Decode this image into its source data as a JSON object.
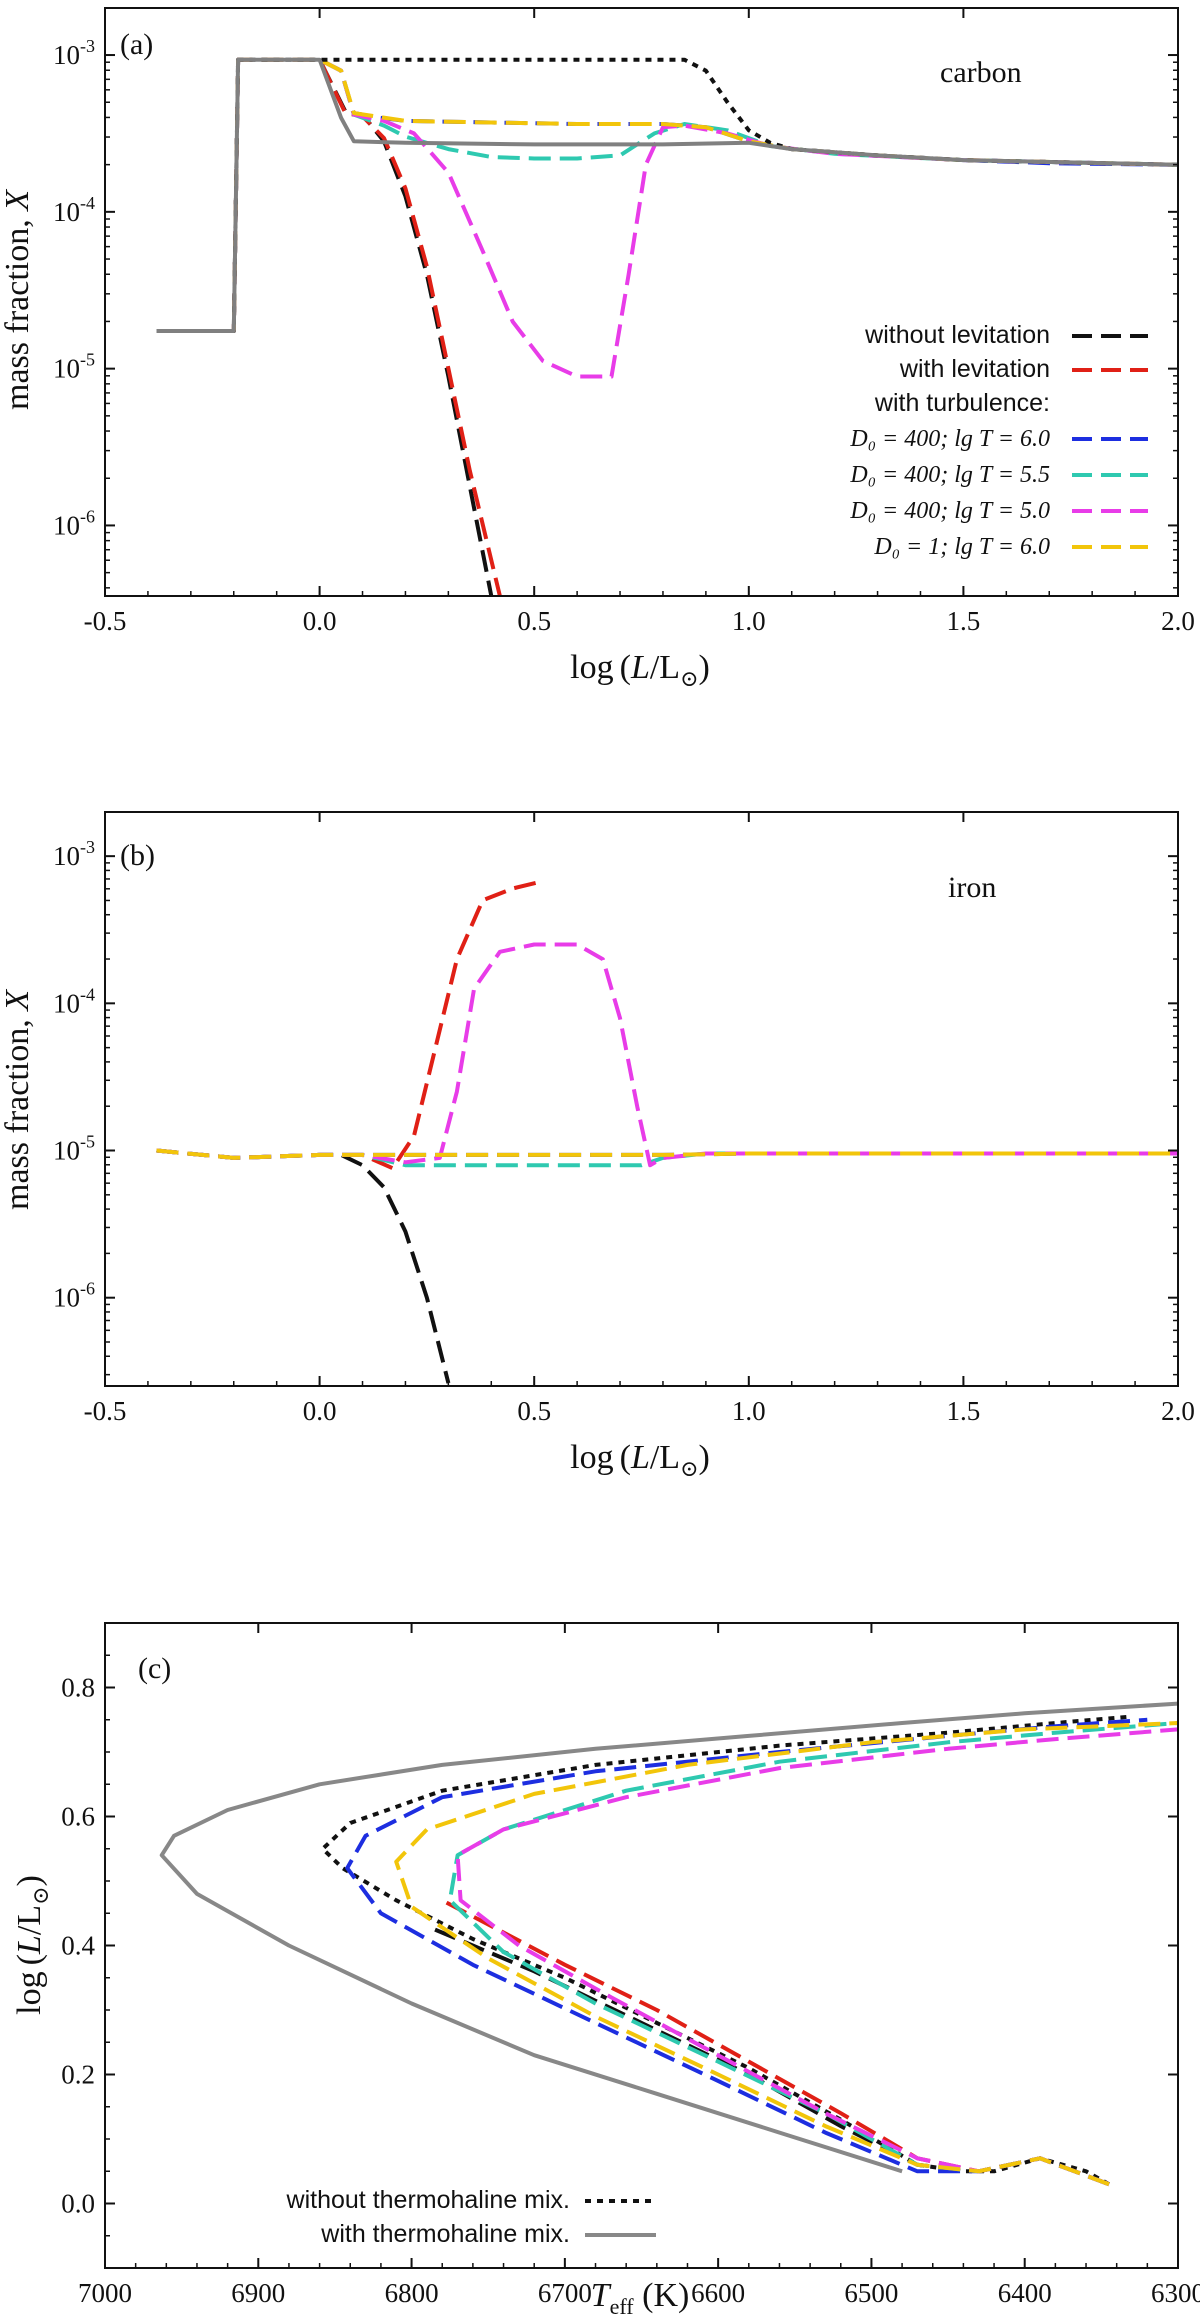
{
  "chart_data": [
    {
      "type": "line",
      "panel_label": "(a)",
      "element": "carbon",
      "xlabel": "log (L/L⊙)",
      "ylabel": "mass fraction, X",
      "xlim": [
        -0.5,
        2.0
      ],
      "ylim_log10": [
        -6.45,
        -2.7
      ],
      "x_ticks": [
        "-0.5",
        "0.0",
        "0.5",
        "1.0",
        "1.5",
        "2.0"
      ],
      "x_tick_values": [
        -0.5,
        0.0,
        0.5,
        1.0,
        1.5,
        2.0
      ],
      "y_ticks": [
        "10-3",
        "10-4",
        "10-5",
        "10-6"
      ],
      "y_tick_values": [
        -3,
        -4,
        -5,
        -6
      ],
      "legend_position": "right-middle",
      "legend_heading": "with turbulence:",
      "series": [
        {
          "name": "without levitation",
          "legend": "without levitation",
          "color": "#111111",
          "dash": "long",
          "x": [
            -0.38,
            -0.2,
            -0.19,
            0.0,
            0.06,
            0.1,
            0.15,
            0.2,
            0.25,
            0.3,
            0.35,
            0.4
          ],
          "y": [
            -4.76,
            -4.76,
            -3.03,
            -3.03,
            -3.36,
            -3.38,
            -3.55,
            -3.9,
            -4.4,
            -5.05,
            -5.75,
            -6.45
          ]
        },
        {
          "name": "with levitation",
          "legend": "with levitation",
          "color": "#e02016",
          "dash": "long",
          "x": [
            -0.38,
            -0.2,
            -0.19,
            0.0,
            0.06,
            0.1,
            0.15,
            0.2,
            0.25,
            0.3,
            0.35,
            0.42
          ],
          "y": [
            -4.76,
            -4.76,
            -3.03,
            -3.03,
            -3.37,
            -3.39,
            -3.53,
            -3.85,
            -4.35,
            -5.0,
            -5.65,
            -6.45
          ]
        },
        {
          "name": "D0=400; lg T=6.0",
          "legend_math": "D₀ = 400; lg T = 6.0",
          "color": "#1d2ee0",
          "dash": "long",
          "x": [
            -0.38,
            -0.2,
            -0.19,
            0.0,
            0.05,
            0.08,
            0.2,
            0.4,
            0.6,
            0.8,
            0.9,
            1.0,
            1.1,
            1.3,
            1.5,
            1.7,
            2.0
          ],
          "y": [
            -4.76,
            -4.76,
            -3.03,
            -3.03,
            -3.1,
            -3.38,
            -3.42,
            -3.43,
            -3.44,
            -3.44,
            -3.46,
            -3.55,
            -3.6,
            -3.64,
            -3.67,
            -3.69,
            -3.7
          ]
        },
        {
          "name": "D0=400; lg T=5.5",
          "legend_math": "D₀ = 400; lg T = 5.5",
          "color": "#2ec9b0",
          "dash": "long",
          "x": [
            -0.38,
            -0.2,
            -0.19,
            0.0,
            0.05,
            0.08,
            0.15,
            0.2,
            0.3,
            0.4,
            0.5,
            0.6,
            0.7,
            0.78,
            0.85,
            0.95,
            1.05,
            1.2,
            1.5,
            2.0
          ],
          "y": [
            -4.76,
            -4.76,
            -3.03,
            -3.03,
            -3.1,
            -3.38,
            -3.45,
            -3.52,
            -3.6,
            -3.65,
            -3.66,
            -3.66,
            -3.64,
            -3.5,
            -3.44,
            -3.48,
            -3.58,
            -3.63,
            -3.67,
            -3.7
          ]
        },
        {
          "name": "D0=400; lg T=5.0",
          "legend_math": "D₀ = 400; lg T = 5.0",
          "color": "#e83ce8",
          "dash": "long",
          "x": [
            -0.38,
            -0.2,
            -0.19,
            0.0,
            0.05,
            0.08,
            0.15,
            0.22,
            0.3,
            0.38,
            0.45,
            0.52,
            0.6,
            0.68,
            0.72,
            0.76,
            0.8,
            0.85,
            0.95,
            1.05,
            1.2,
            1.5,
            2.0
          ],
          "y": [
            -4.76,
            -4.76,
            -3.03,
            -3.03,
            -3.1,
            -3.38,
            -3.42,
            -3.5,
            -3.75,
            -4.25,
            -4.7,
            -4.95,
            -5.05,
            -5.05,
            -4.4,
            -3.7,
            -3.46,
            -3.45,
            -3.5,
            -3.58,
            -3.63,
            -3.67,
            -3.7
          ]
        },
        {
          "name": "D0=1; lg T=6.0",
          "legend_math": "D₀ = 1; lg T = 6.0",
          "color": "#f2c50a",
          "dash": "long",
          "x": [
            -0.38,
            -0.2,
            -0.19,
            0.0,
            0.05,
            0.08,
            0.2,
            0.4,
            0.6,
            0.8,
            0.9,
            1.0,
            1.1,
            1.3,
            1.5,
            2.0
          ],
          "y": [
            -4.76,
            -4.76,
            -3.03,
            -3.03,
            -3.1,
            -3.37,
            -3.42,
            -3.43,
            -3.44,
            -3.44,
            -3.46,
            -3.55,
            -3.6,
            -3.64,
            -3.67,
            -3.7
          ]
        },
        {
          "name": "without thermohaline mix.",
          "color": "#111111",
          "dash": "dot",
          "x": [
            -0.38,
            -0.2,
            -0.19,
            0.0,
            0.5,
            0.85,
            0.9,
            0.95,
            1.0,
            1.05,
            1.1,
            1.3,
            1.5,
            2.0
          ],
          "y": [
            -4.76,
            -4.76,
            -3.03,
            -3.03,
            -3.03,
            -3.03,
            -3.1,
            -3.3,
            -3.48,
            -3.56,
            -3.6,
            -3.64,
            -3.67,
            -3.7
          ]
        },
        {
          "name": "with thermohaline mix.",
          "color": "#808080",
          "dash": "solid",
          "x": [
            -0.38,
            -0.2,
            -0.19,
            0.0,
            0.05,
            0.08,
            0.2,
            0.5,
            0.8,
            1.0,
            1.1,
            1.3,
            1.5,
            2.0
          ],
          "y": [
            -4.76,
            -4.76,
            -3.03,
            -3.03,
            -3.4,
            -3.55,
            -3.56,
            -3.57,
            -3.57,
            -3.56,
            -3.6,
            -3.64,
            -3.67,
            -3.7
          ]
        }
      ]
    },
    {
      "type": "line",
      "panel_label": "(b)",
      "element": "iron",
      "xlabel": "log (L/L⊙)",
      "ylabel": "mass fraction, X",
      "xlim": [
        -0.5,
        2.0
      ],
      "ylim_log10": [
        -6.6,
        -2.7
      ],
      "x_ticks": [
        "-0.5",
        "0.0",
        "0.5",
        "1.0",
        "1.5",
        "2.0"
      ],
      "x_tick_values": [
        -0.5,
        0.0,
        0.5,
        1.0,
        1.5,
        2.0
      ],
      "y_ticks": [
        "10-3",
        "10-4",
        "10-5",
        "10-6"
      ],
      "y_tick_values": [
        -3,
        -4,
        -5,
        -6
      ],
      "series": [
        {
          "name": "without levitation",
          "color": "#111111",
          "dash": "long",
          "x": [
            -0.38,
            -0.2,
            0.0,
            0.05,
            0.1,
            0.15,
            0.2,
            0.25,
            0.3
          ],
          "y": [
            -5.0,
            -5.05,
            -5.03,
            -5.03,
            -5.1,
            -5.25,
            -5.55,
            -6.0,
            -6.58
          ]
        },
        {
          "name": "with levitation",
          "color": "#e02016",
          "dash": "long",
          "x": [
            -0.38,
            -0.2,
            0.0,
            0.1,
            0.17,
            0.22,
            0.27,
            0.32,
            0.38,
            0.45,
            0.52
          ],
          "y": [
            -5.0,
            -5.05,
            -5.03,
            -5.03,
            -5.12,
            -4.9,
            -4.3,
            -3.7,
            -3.3,
            -3.22,
            -3.17
          ]
        },
        {
          "name": "D0=400; lg T=6.0",
          "color": "#1d2ee0",
          "dash": "long",
          "x": [
            -0.38,
            -0.2,
            0.0,
            0.2,
            0.4,
            0.6,
            0.8,
            1.0,
            1.5,
            2.0
          ],
          "y": [
            -5.0,
            -5.05,
            -5.03,
            -5.03,
            -5.03,
            -5.03,
            -5.03,
            -5.02,
            -5.02,
            -5.02
          ]
        },
        {
          "name": "D0=400; lg T=5.5",
          "color": "#2ec9b0",
          "dash": "long",
          "x": [
            -0.38,
            -0.2,
            0.0,
            0.1,
            0.2,
            0.4,
            0.6,
            0.75,
            0.8,
            0.9,
            1.0,
            1.5,
            2.0
          ],
          "y": [
            -5.0,
            -5.05,
            -5.03,
            -5.03,
            -5.1,
            -5.1,
            -5.1,
            -5.1,
            -5.05,
            -5.02,
            -5.02,
            -5.02,
            -5.02
          ]
        },
        {
          "name": "D0=400; lg T=5.0",
          "color": "#e83ce8",
          "dash": "long",
          "x": [
            -0.38,
            -0.2,
            0.0,
            0.1,
            0.2,
            0.28,
            0.32,
            0.36,
            0.42,
            0.5,
            0.6,
            0.66,
            0.7,
            0.74,
            0.77,
            0.8,
            0.9,
            1.0,
            1.5,
            2.0
          ],
          "y": [
            -5.0,
            -5.05,
            -5.03,
            -5.03,
            -5.08,
            -5.05,
            -4.6,
            -3.9,
            -3.65,
            -3.6,
            -3.6,
            -3.7,
            -4.1,
            -4.7,
            -5.1,
            -5.05,
            -5.02,
            -5.02,
            -5.02,
            -5.02
          ]
        },
        {
          "name": "D0=1; lg T=6.0",
          "color": "#f2c50a",
          "dash": "long",
          "x": [
            -0.38,
            -0.2,
            0.0,
            0.2,
            0.4,
            0.6,
            0.8,
            1.0,
            1.5,
            2.0
          ],
          "y": [
            -5.0,
            -5.05,
            -5.03,
            -5.03,
            -5.03,
            -5.03,
            -5.03,
            -5.02,
            -5.02,
            -5.02
          ]
        }
      ]
    },
    {
      "type": "line",
      "panel_label": "(c)",
      "xlabel": "Teff (K)",
      "ylabel": "log (L/L⊙)",
      "xlim": [
        7000,
        6300
      ],
      "ylim": [
        -0.1,
        0.9
      ],
      "x_ticks": [
        "7000",
        "6900",
        "6800",
        "6700",
        "6600",
        "6500",
        "6400",
        "6300"
      ],
      "x_tick_values": [
        7000,
        6900,
        6800,
        6700,
        6600,
        6500,
        6400,
        6300
      ],
      "y_ticks": [
        "0.0",
        "0.2",
        "0.4",
        "0.6",
        "0.8"
      ],
      "y_tick_values": [
        0.0,
        0.2,
        0.4,
        0.6,
        0.8
      ],
      "legend_position": "bottom-left",
      "series": [
        {
          "name": "without thermohaline mix.",
          "legend": "without thermohaline mix.",
          "color": "#111111",
          "dash": "dot",
          "x": [
            6345,
            6360,
            6390,
            6420,
            6440,
            6470,
            6520,
            6580,
            6640,
            6700,
            6760,
            6810,
            6845,
            6858,
            6840,
            6780,
            6680,
            6560,
            6450,
            6380,
            6330
          ],
          "y": [
            0.03,
            0.05,
            0.07,
            0.05,
            0.05,
            0.06,
            0.13,
            0.21,
            0.28,
            0.35,
            0.41,
            0.47,
            0.52,
            0.55,
            0.59,
            0.64,
            0.68,
            0.71,
            0.73,
            0.745,
            0.755
          ]
        },
        {
          "name": "with thermohaline mix.",
          "legend": "with thermohaline mix.",
          "color": "#888888",
          "dash": "solid",
          "x": [
            6480,
            6560,
            6640,
            6720,
            6800,
            6880,
            6940,
            6963,
            6955,
            6920,
            6860,
            6780,
            6680,
            6580,
            6480,
            6400,
            6300
          ],
          "y": [
            0.05,
            0.11,
            0.17,
            0.23,
            0.31,
            0.4,
            0.48,
            0.54,
            0.57,
            0.61,
            0.65,
            0.68,
            0.705,
            0.725,
            0.745,
            0.76,
            0.775
          ]
        },
        {
          "name": "without levitation",
          "color": "#111111",
          "dash": "long",
          "x": [
            6345,
            6390,
            6430,
            6470,
            6520,
            6580,
            6650,
            6720,
            6790
          ],
          "y": [
            0.03,
            0.07,
            0.05,
            0.06,
            0.12,
            0.2,
            0.28,
            0.36,
            0.43
          ]
        },
        {
          "name": "with levitation",
          "color": "#e02016",
          "dash": "long",
          "x": [
            6345,
            6390,
            6430,
            6470,
            6520,
            6580,
            6640,
            6700,
            6780
          ],
          "y": [
            0.03,
            0.07,
            0.05,
            0.07,
            0.14,
            0.22,
            0.3,
            0.37,
            0.47
          ]
        },
        {
          "name": "D0=400; lg T=6.0",
          "color": "#1d2ee0",
          "dash": "long",
          "x": [
            6345,
            6390,
            6430,
            6470,
            6530,
            6600,
            6680,
            6760,
            6820,
            6842,
            6830,
            6780,
            6680,
            6560,
            6450,
            6380,
            6320
          ],
          "y": [
            0.03,
            0.07,
            0.05,
            0.05,
            0.11,
            0.19,
            0.28,
            0.37,
            0.45,
            0.52,
            0.57,
            0.63,
            0.67,
            0.7,
            0.725,
            0.74,
            0.75
          ]
        },
        {
          "name": "D0=400; lg T=5.5",
          "color": "#2ec9b0",
          "dash": "long",
          "x": [
            6345,
            6390,
            6430,
            6470,
            6530,
            6600,
            6680,
            6740,
            6775,
            6770,
            6740,
            6660,
            6560,
            6450,
            6380,
            6300
          ],
          "y": [
            0.03,
            0.07,
            0.05,
            0.06,
            0.14,
            0.22,
            0.31,
            0.39,
            0.47,
            0.54,
            0.58,
            0.64,
            0.685,
            0.715,
            0.73,
            0.745
          ]
        },
        {
          "name": "D0=400; lg T=5.0",
          "color": "#e83ce8",
          "dash": "long",
          "x": [
            6345,
            6390,
            6430,
            6470,
            6530,
            6600,
            6670,
            6730,
            6768,
            6770,
            6740,
            6660,
            6560,
            6450,
            6380,
            6300
          ],
          "y": [
            0.03,
            0.07,
            0.05,
            0.07,
            0.14,
            0.23,
            0.32,
            0.4,
            0.47,
            0.54,
            0.58,
            0.63,
            0.675,
            0.705,
            0.72,
            0.735
          ]
        },
        {
          "name": "D0=1; lg T=6.0",
          "color": "#f2c50a",
          "dash": "long",
          "x": [
            6345,
            6390,
            6430,
            6470,
            6530,
            6600,
            6680,
            6750,
            6800,
            6810,
            6790,
            6720,
            6620,
            6500,
            6400,
            6300
          ],
          "y": [
            0.03,
            0.07,
            0.05,
            0.06,
            0.12,
            0.2,
            0.29,
            0.38,
            0.46,
            0.53,
            0.58,
            0.635,
            0.68,
            0.715,
            0.735,
            0.745
          ]
        }
      ]
    }
  ]
}
